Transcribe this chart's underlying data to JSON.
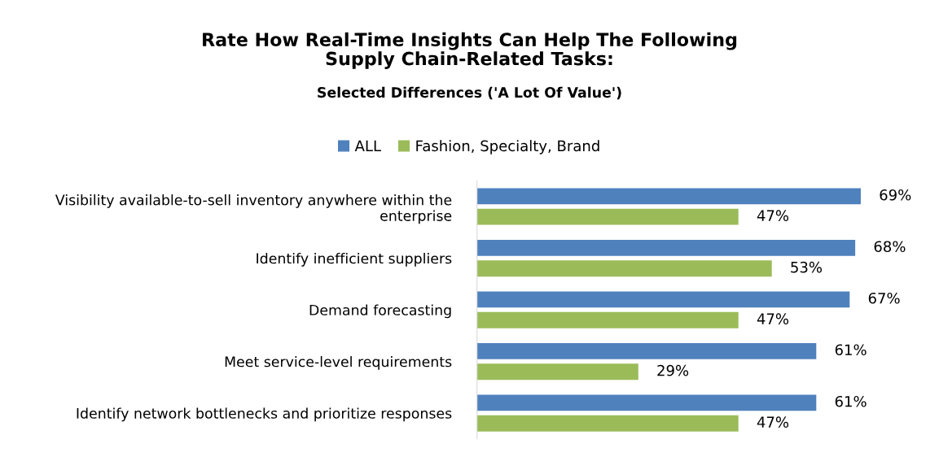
{
  "chart_data": {
    "type": "bar",
    "orientation": "horizontal",
    "title": "Rate How Real-Time Insights Can Help The Following\nSupply Chain-Related Tasks:",
    "subtitle": "Selected Differences ('A Lot Of Value')",
    "categories": [
      "Visibility available-to-sell inventory anywhere within the\nenterprise",
      "Identify inefficient suppliers",
      "Demand forecasting",
      "Meet service-level requirements",
      "Identify network bottlenecks and prioritize responses"
    ],
    "series": [
      {
        "name": "ALL",
        "color": "#4f81bd",
        "values": [
          69,
          68,
          67,
          61,
          61
        ],
        "value_labels": [
          "69%",
          "68%",
          "67%",
          "61%",
          "61%"
        ]
      },
      {
        "name": "Fashion, Specialty, Brand",
        "color": "#9bbb59",
        "values": [
          47,
          53,
          47,
          29,
          47
        ],
        "value_labels": [
          "47%",
          "53%",
          "47%",
          "29%",
          "47%"
        ]
      }
    ],
    "tick_labels": "y",
    "legend": "top",
    "grid": false
  }
}
